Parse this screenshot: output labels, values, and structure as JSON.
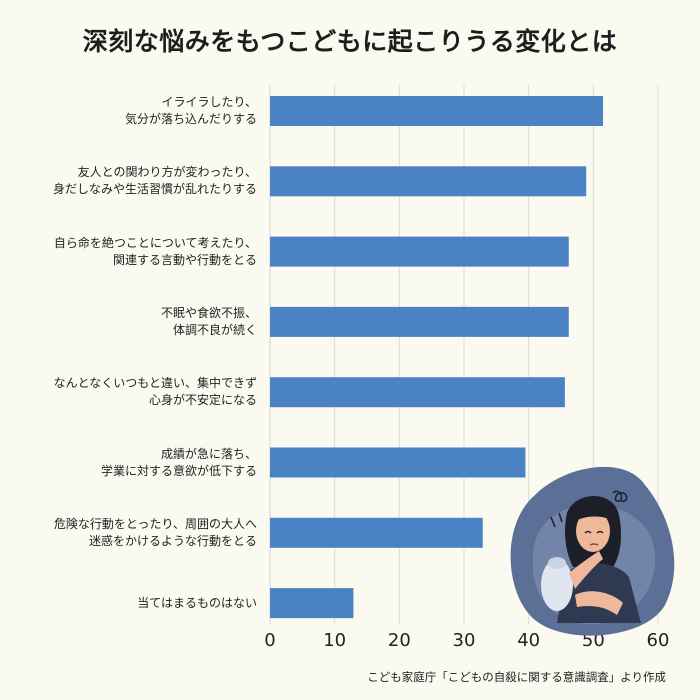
{
  "chart_data": {
    "type": "bar",
    "orientation": "horizontal",
    "title": "深刻な悩みをもつこどもに起こりうる変化とは",
    "categories": [
      [
        "イライラしたり、",
        "気分が落ち込んだりする"
      ],
      [
        "友人との関わり方が変わったり、",
        "身だしなみや生活習慣が乱れたりする"
      ],
      [
        "自ら命を絶つことについて考えたり、",
        "関連する言動や行動をとる"
      ],
      [
        "不眠や食欲不振、",
        "体調不良が続く"
      ],
      [
        "なんとなくいつもと違い、集中できず",
        "心身が不安定になる"
      ],
      [
        "成績が急に落ち、",
        "学業に対する意欲が低下する"
      ],
      [
        "危険な行動をとったり、周囲の大人へ",
        "迷惑をかけるような行動をとる"
      ],
      [
        "当てはまるものはない"
      ]
    ],
    "values": [
      51.5,
      48.9,
      46.2,
      46.2,
      45.6,
      39.5,
      32.9,
      12.9
    ],
    "xlim": [
      0,
      60
    ],
    "xticks": [
      "0",
      "10",
      "20",
      "30",
      "40",
      "50",
      "60"
    ],
    "grid": "vertical",
    "legend": "none",
    "bar_color": "#4a82c3",
    "grid_color": "#dcdcd4"
  },
  "source": "こども家庭庁「こどもの自殺に関する意識調査」より作成",
  "illustration": "worried-child-icon"
}
